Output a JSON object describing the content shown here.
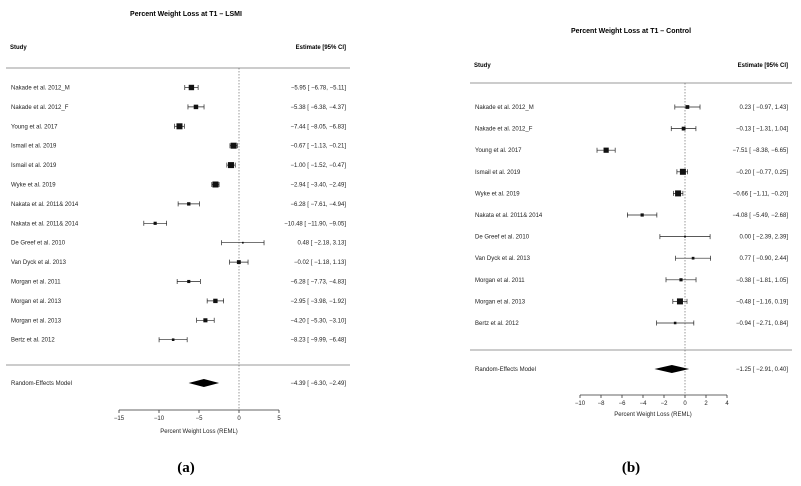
{
  "chart_data": [
    {
      "type": "forest",
      "title": "Percent Weight Loss at T1 – LSMI",
      "column_headers": {
        "study": "Study",
        "estimate": "Estimate [95% CI]"
      },
      "xlabel": "Percent Weight Loss (REML)",
      "xlim": [
        -15,
        5
      ],
      "xticks": [
        -15,
        -10,
        -5,
        0,
        5
      ],
      "studies": [
        {
          "name": "Nakade et al. 2012_M",
          "est": -5.95,
          "lo": -6.78,
          "hi": -5.11,
          "text": "−5.95 [ −6.78, −5.11]"
        },
        {
          "name": "Nakade et al. 2012_F",
          "est": -5.38,
          "lo": -6.38,
          "hi": -4.37,
          "text": "−5.38 [ −6.38, −4.37]"
        },
        {
          "name": "Young et al. 2017",
          "est": -7.44,
          "lo": -8.05,
          "hi": -6.83,
          "text": "−7.44 [ −8.05, −6.83]"
        },
        {
          "name": "Ismail et al. 2019",
          "est": -0.67,
          "lo": -1.13,
          "hi": -0.21,
          "text": "−0.67 [ −1.13, −0.21]"
        },
        {
          "name": "Ismail et al. 2019",
          "est": -1.0,
          "lo": -1.52,
          "hi": -0.47,
          "text": "−1.00 [ −1.52, −0.47]"
        },
        {
          "name": "Wyke et al. 2019",
          "est": -2.94,
          "lo": -3.4,
          "hi": -2.49,
          "text": "−2.94 [ −3.40, −2.49]"
        },
        {
          "name": "Nakata et al. 2011& 2014",
          "est": -6.28,
          "lo": -7.61,
          "hi": -4.94,
          "text": "−6.28 [ −7.61, −4.94]"
        },
        {
          "name": "Nakata et al. 2011& 2014",
          "est": -10.48,
          "lo": -11.9,
          "hi": -9.05,
          "text": "−10.48 [ −11.90, −9.05]"
        },
        {
          "name": "De Greef et al. 2010",
          "est": 0.48,
          "lo": -2.18,
          "hi": 3.13,
          "text": "0.48 [ −2.18, 3.13]"
        },
        {
          "name": "Van Dyck et al. 2013",
          "est": -0.02,
          "lo": -1.18,
          "hi": 1.13,
          "text": "−0.02 [ −1.18, 1.13]"
        },
        {
          "name": "Morgan et al. 2011",
          "est": -6.28,
          "lo": -7.73,
          "hi": -4.83,
          "text": "−6.28 [ −7.73, −4.83]"
        },
        {
          "name": "Morgan et al. 2013",
          "est": -2.95,
          "lo": -3.98,
          "hi": -1.92,
          "text": "−2.95 [ −3.98, −1.92]"
        },
        {
          "name": "Morgan et al. 2013",
          "est": -4.2,
          "lo": -5.3,
          "hi": -3.1,
          "text": "−4.20 [ −5.30, −3.10]"
        },
        {
          "name": "Bertz et al. 2012",
          "est": -8.23,
          "lo": -9.99,
          "hi": -6.48,
          "text": "−8.23 [ −9.99, −6.48]"
        }
      ],
      "summary": {
        "name": "Random-Effects Model",
        "est": -4.39,
        "lo": -6.3,
        "hi": -2.49,
        "text": "−4.39 [ −6.30, −2.49]"
      },
      "panel_label": "(a)"
    },
    {
      "type": "forest",
      "title": "Percent Weight Loss at T1 – Control",
      "column_headers": {
        "study": "Study",
        "estimate": "Estimate [95% CI]"
      },
      "xlabel": "Percent Weight Loss (REML)",
      "xlim": [
        -10,
        4
      ],
      "xticks": [
        -10,
        -8,
        -6,
        -4,
        -2,
        0,
        2,
        4
      ],
      "studies": [
        {
          "name": "Nakade et al. 2012_M",
          "est": 0.23,
          "lo": -0.97,
          "hi": 1.43,
          "text": "0.23 [ −0.97, 1.43]"
        },
        {
          "name": "Nakade et al. 2012_F",
          "est": -0.13,
          "lo": -1.31,
          "hi": 1.04,
          "text": "−0.13 [ −1.31, 1.04]"
        },
        {
          "name": "Young et al. 2017",
          "est": -7.51,
          "lo": -8.38,
          "hi": -6.65,
          "text": "−7.51 [ −8.38, −6.65]"
        },
        {
          "name": "Ismail et al. 2019",
          "est": -0.2,
          "lo": -0.77,
          "hi": 0.25,
          "text": "−0.20 [ −0.77, 0.25]"
        },
        {
          "name": "Wyke et al. 2019",
          "est": -0.66,
          "lo": -1.11,
          "hi": -0.2,
          "text": "−0.66 [ −1.11, −0.20]"
        },
        {
          "name": "Nakata et al. 2011& 2014",
          "est": -4.08,
          "lo": -5.49,
          "hi": -2.68,
          "text": "−4.08 [ −5.49, −2.68]"
        },
        {
          "name": "De Greef et al. 2010",
          "est": 0.0,
          "lo": -2.39,
          "hi": 2.39,
          "text": "0.00 [ −2.39, 2.39]"
        },
        {
          "name": "Van Dyck et al. 2013",
          "est": 0.77,
          "lo": -0.9,
          "hi": 2.44,
          "text": "0.77 [ −0.90, 2.44]"
        },
        {
          "name": "Morgan et al. 2011",
          "est": -0.38,
          "lo": -1.81,
          "hi": 1.05,
          "text": "−0.38 [ −1.81, 1.05]"
        },
        {
          "name": "Morgan et al. 2013",
          "est": -0.48,
          "lo": -1.16,
          "hi": 0.19,
          "text": "−0.48 [ −1.16, 0.19]"
        },
        {
          "name": "Bertz et al. 2012",
          "est": -0.94,
          "lo": -2.71,
          "hi": 0.84,
          "text": "−0.94 [ −2.71, 0.84]"
        }
      ],
      "summary": {
        "name": "Random-Effects Model",
        "est": -1.25,
        "lo": -2.91,
        "hi": 0.4,
        "text": "−1.25 [ −2.91, 0.40]"
      },
      "panel_label": "(b)"
    }
  ]
}
